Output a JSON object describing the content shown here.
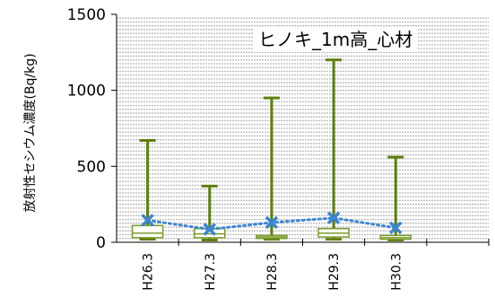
{
  "chart_data": {
    "type": "boxplot",
    "title": "ヒノキ_1m高_心材",
    "ylabel": "放射性セシウム濃度(Bq/kg)",
    "xlabel": "",
    "ylim": [
      0,
      1500
    ],
    "yticks": [
      0,
      500,
      1000,
      1500
    ],
    "grid": true,
    "categories": [
      "H26.3",
      "H27.3",
      "H28.3",
      "H29.3",
      "H30.3"
    ],
    "boxes": [
      {
        "min": 20,
        "q1": 30,
        "median": 60,
        "q3": 110,
        "max": 670,
        "mean": 145
      },
      {
        "min": 15,
        "q1": 30,
        "median": 55,
        "q3": 90,
        "max": 370,
        "mean": 85
      },
      {
        "min": 20,
        "q1": 25,
        "median": 35,
        "q3": 45,
        "max": 950,
        "mean": 130
      },
      {
        "min": 20,
        "q1": 35,
        "median": 60,
        "q3": 90,
        "max": 1200,
        "mean": 160
      },
      {
        "min": 15,
        "q1": 20,
        "median": 30,
        "q3": 45,
        "max": 560,
        "mean": 95
      }
    ],
    "colors": {
      "box": "#7a9a2a",
      "whisker": "#5e7f0f",
      "mean": "#3a86d4",
      "grid": "#b8b8b8"
    }
  }
}
